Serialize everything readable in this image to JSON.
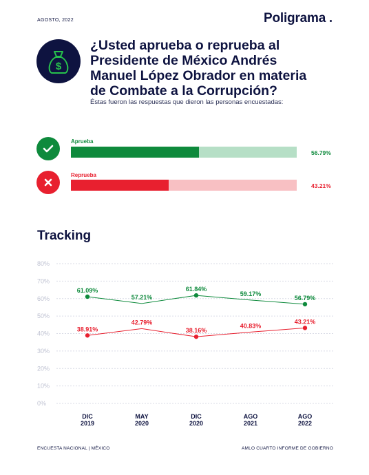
{
  "header": {
    "date": "AGOSTO, 2022",
    "brand": "Poligrama"
  },
  "question": {
    "title": "¿Usted aprueba o reprueba al Presidente de México Andrés Manuel López Obrador en materia de Combate a la Corrupción?",
    "subtitle": "Éstas fueron las respuestas que dieron las personas encuestadas:",
    "icon": "money-bag-icon"
  },
  "results": [
    {
      "label": "Aprueba",
      "value": 56.79,
      "value_text": "56.79%",
      "color": "#0e8a3c",
      "track_color": "#b6dfc6",
      "icon": "check-icon"
    },
    {
      "label": "Reprueba",
      "value": 43.21,
      "value_text": "43.21%",
      "color": "#e8202f",
      "track_color": "#f8c0c3",
      "icon": "x-icon"
    }
  ],
  "tracking": {
    "title": "Tracking"
  },
  "chart_data": {
    "type": "line",
    "categories": [
      "DIC 2019",
      "MAY 2020",
      "DIC 2020",
      "AGO 2021",
      "AGO 2022"
    ],
    "category_lines": [
      [
        "DIC",
        "2019"
      ],
      [
        "MAY",
        "2020"
      ],
      [
        "DIC",
        "2020"
      ],
      [
        "AGO",
        "2021"
      ],
      [
        "AGO",
        "2022"
      ]
    ],
    "ylim": [
      0,
      80
    ],
    "yticks": [
      "0%",
      "10%",
      "20%",
      "30%",
      "40%",
      "50%",
      "60%",
      "70%",
      "80%"
    ],
    "grid": true,
    "series": [
      {
        "name": "Aprueba",
        "color": "#0e8a3c",
        "values": [
          61.09,
          57.21,
          61.84,
          59.17,
          56.79
        ],
        "labels": [
          "61.09%",
          "57.21%",
          "61.84%",
          "59.17%",
          "56.79%"
        ]
      },
      {
        "name": "Reprueba",
        "color": "#e8202f",
        "values": [
          38.91,
          42.79,
          38.16,
          40.83,
          43.21
        ],
        "labels": [
          "38.91%",
          "42.79%",
          "38.16%",
          "40.83%",
          "43.21%"
        ]
      }
    ]
  },
  "footer": {
    "left": "ENCUESTA NACIONAL | MÉXICO",
    "right": "AMLO CUARTO INFORME DE GOBIERNO"
  }
}
